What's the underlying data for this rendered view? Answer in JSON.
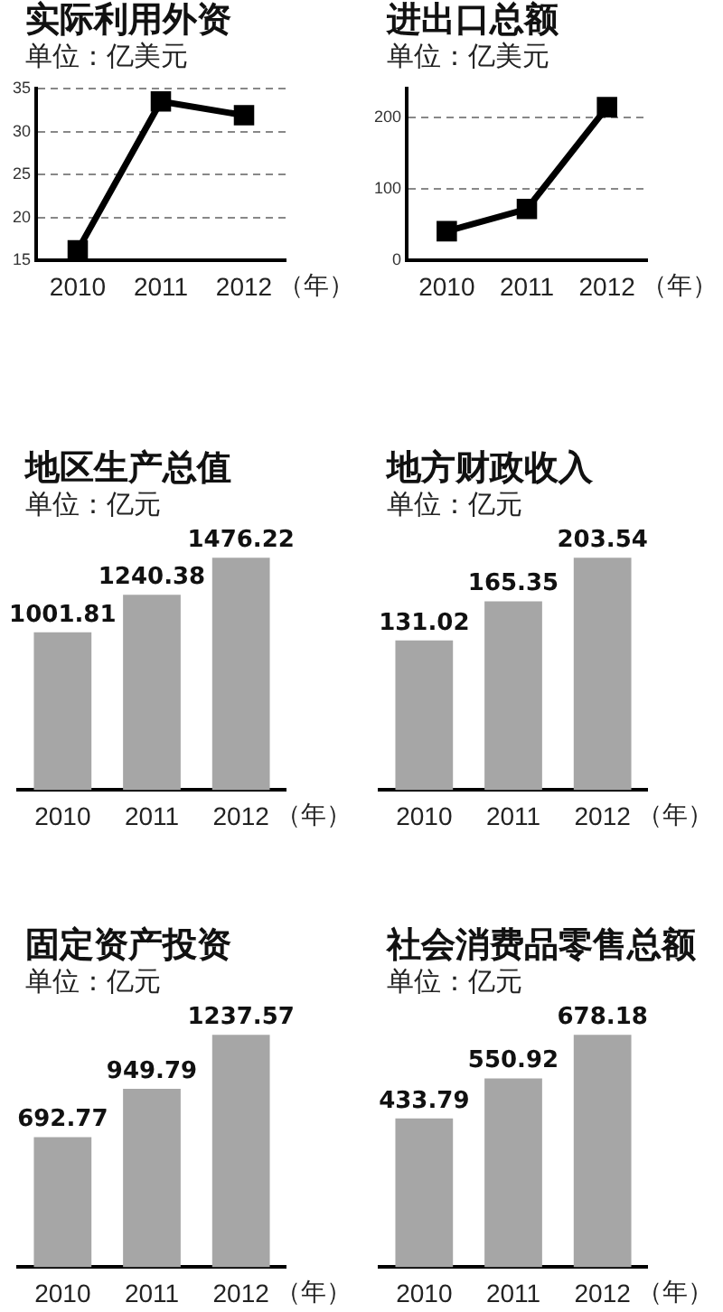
{
  "chart_data": [
    {
      "type": "line",
      "title": "实际利用外资",
      "subtitle": "单位：亿美元",
      "xlabel": "（年）",
      "categories": [
        "2010",
        "2011",
        "2012"
      ],
      "values": [
        16.2,
        33.5,
        31.9
      ],
      "color": "#000000",
      "ylim": [
        15,
        35
      ],
      "yticks": [
        15,
        20,
        25,
        30,
        35
      ],
      "grid": "y",
      "marker": "square"
    },
    {
      "type": "line",
      "title": "进出口总额",
      "subtitle": "单位：亿美元",
      "xlabel": "（年）",
      "categories": [
        "2010",
        "2011",
        "2012"
      ],
      "values": [
        41,
        72,
        214
      ],
      "color": "#000000",
      "ylim": [
        0,
        240
      ],
      "yticks": [
        0,
        100,
        200
      ],
      "grid": "y",
      "marker": "square"
    },
    {
      "type": "bar",
      "title": "地区生产总值",
      "subtitle": "单位：亿元",
      "xlabel": "（年）",
      "categories": [
        "2010",
        "2011",
        "2012"
      ],
      "values": [
        1001.81,
        1240.38,
        1476.22
      ],
      "color": "#a6a6a6",
      "data_labels": true
    },
    {
      "type": "bar",
      "title": "地方财政收入",
      "subtitle": "单位：亿元",
      "xlabel": "（年）",
      "categories": [
        "2010",
        "2011",
        "2012"
      ],
      "values": [
        131.02,
        165.35,
        203.54
      ],
      "color": "#a6a6a6",
      "data_labels": true
    },
    {
      "type": "bar",
      "title": "固定资产投资",
      "subtitle": "单位：亿元",
      "xlabel": "（年）",
      "categories": [
        "2010",
        "2011",
        "2012"
      ],
      "values": [
        692.77,
        949.79,
        1237.57
      ],
      "color": "#a6a6a6",
      "data_labels": true
    },
    {
      "type": "bar",
      "title": "社会消费品零售总额",
      "subtitle": "单位：亿元",
      "xlabel": "（年）",
      "categories": [
        "2010",
        "2011",
        "2012"
      ],
      "values": [
        433.79,
        550.92,
        678.18
      ],
      "color": "#a6a6a6",
      "data_labels": true
    }
  ]
}
